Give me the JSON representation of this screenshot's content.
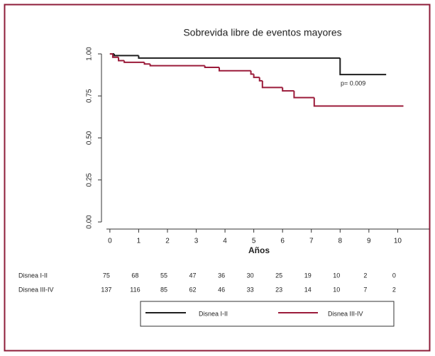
{
  "chart_data": {
    "type": "step",
    "title": "Sobrevida libre de eventos mayores",
    "xlabel": "Años",
    "xlim": [
      -0.12,
      11.1
    ],
    "ylim": [
      0,
      1
    ],
    "xticks": [
      0,
      1,
      2,
      3,
      4,
      5,
      6,
      7,
      8,
      9,
      10
    ],
    "yticks": [
      {
        "value": 0,
        "label": "0.00"
      },
      {
        "value": 0.25,
        "label": "0.25"
      },
      {
        "value": 0.5,
        "label": "0.50"
      },
      {
        "value": 0.75,
        "label": "0.75"
      },
      {
        "value": 1,
        "label": "1.00"
      }
    ],
    "annotation": "p= 0.009",
    "series": [
      {
        "name": "Disnea I-II",
        "color": "#1e1e1e",
        "x": [
          0,
          0.15,
          1.0,
          8.0,
          9.6
        ],
        "values": [
          1.0,
          0.99,
          0.975,
          0.877,
          0.877
        ]
      },
      {
        "name": "Disnea III-IV",
        "color": "#9b1b3a",
        "x": [
          0,
          0.1,
          0.3,
          0.5,
          1.2,
          1.4,
          3.3,
          3.8,
          4.9,
          5.0,
          5.2,
          5.3,
          6.0,
          6.4,
          7.1,
          10.2
        ],
        "values": [
          1.0,
          0.98,
          0.96,
          0.95,
          0.94,
          0.93,
          0.92,
          0.9,
          0.88,
          0.86,
          0.84,
          0.8,
          0.78,
          0.74,
          0.69,
          0.69
        ]
      }
    ],
    "risk_table": {
      "rows": [
        {
          "label": "Disnea I-II",
          "values": [
            75,
            68,
            55,
            47,
            36,
            30,
            25,
            19,
            10,
            2,
            0
          ]
        },
        {
          "label": "Disnea III-IV",
          "values": [
            137,
            116,
            85,
            62,
            46,
            33,
            23,
            14,
            10,
            7,
            2
          ]
        }
      ]
    }
  }
}
